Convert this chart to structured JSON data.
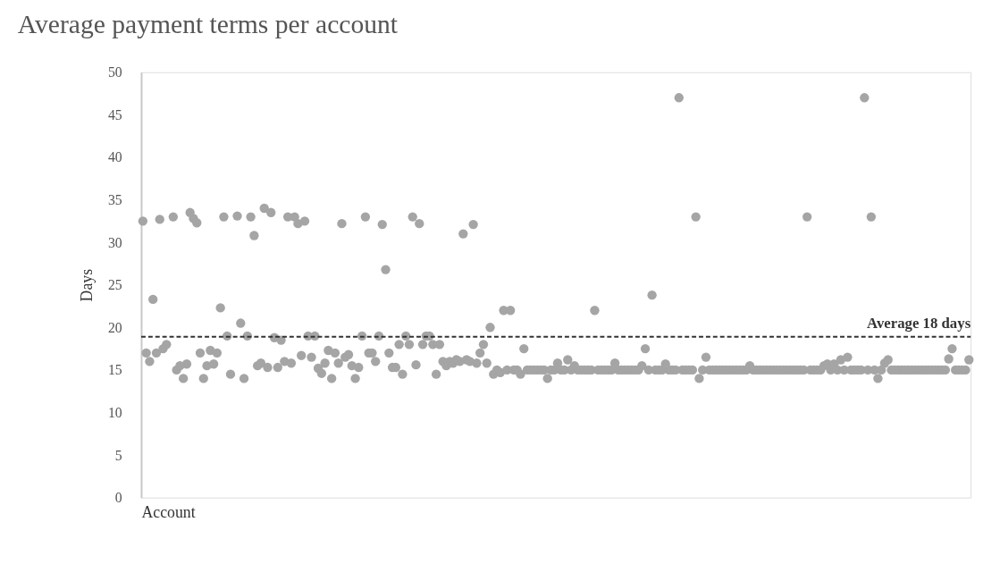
{
  "chart_data": {
    "type": "scatter",
    "title": "Average payment terms per account",
    "xlabel": "Account",
    "ylabel": "Days",
    "categories": [
      null,
      null,
      null,
      null,
      null,
      null,
      null,
      null,
      null,
      null,
      null,
      null,
      null,
      null,
      null,
      null,
      null,
      null,
      null,
      null,
      null,
      null,
      null,
      null,
      null,
      null,
      null,
      null,
      null,
      null,
      null,
      null,
      null,
      null,
      null,
      null,
      null,
      null,
      null,
      null,
      null,
      null,
      null,
      null,
      null,
      null,
      null,
      null,
      null,
      null,
      null,
      null,
      null,
      null,
      null,
      null,
      null,
      null,
      null,
      null,
      null,
      null,
      null,
      null,
      null,
      null,
      null,
      null,
      null,
      null,
      null,
      null,
      null,
      null,
      null,
      null,
      null,
      null,
      null,
      null,
      null,
      null,
      null,
      null,
      null,
      null,
      null,
      null,
      null,
      null,
      null,
      null,
      null,
      null,
      null,
      null,
      null,
      null,
      null,
      null,
      null,
      null,
      null,
      null,
      null,
      null,
      null,
      null,
      null,
      null,
      null,
      null,
      null,
      null,
      null,
      null,
      null,
      null,
      null,
      null,
      null,
      null,
      null,
      null,
      null,
      null,
      null,
      null,
      null,
      null,
      null,
      null,
      null,
      null,
      null,
      null,
      null,
      null,
      null,
      null,
      null,
      null,
      null,
      null,
      null,
      null,
      null,
      null,
      null,
      null,
      null,
      null,
      null,
      null,
      null,
      null,
      null,
      null,
      null,
      null,
      null,
      null,
      null,
      null,
      null,
      null,
      null,
      null,
      null,
      null,
      null,
      null,
      null,
      null,
      null,
      null,
      null,
      null,
      null,
      null,
      null,
      null,
      null,
      null,
      null,
      null,
      null,
      null,
      null,
      null,
      null,
      null,
      null,
      null,
      null,
      null,
      null,
      null,
      null,
      null,
      null,
      null,
      null,
      null,
      null,
      null,
      null,
      null,
      null,
      null,
      null,
      null,
      null,
      null,
      null,
      null,
      null,
      null,
      null,
      null,
      null,
      null,
      null,
      null,
      null,
      null,
      null,
      null,
      null,
      null,
      null,
      null,
      null,
      null,
      null,
      null,
      null,
      null,
      null,
      null,
      null,
      null,
      null,
      null,
      null,
      null
    ],
    "series": [
      {
        "color": "#a5a5a5",
        "values": [
          32.5,
          17,
          16,
          23.3,
          17,
          32.7,
          17.5,
          18,
          null,
          33,
          15,
          15.5,
          14,
          15.7,
          33.5,
          32.8,
          32.3,
          17,
          14,
          15.5,
          17.3,
          15.7,
          17,
          22.3,
          33,
          19,
          14.5,
          null,
          33.1,
          20.5,
          14,
          19,
          33,
          30.8,
          15.5,
          15.8,
          34,
          15.3,
          33.5,
          18.8,
          15.3,
          18.5,
          16,
          33,
          15.8,
          33,
          32.2,
          16.7,
          32.5,
          19,
          16.5,
          19,
          15.2,
          14.6,
          15.8,
          17.3,
          14,
          17,
          15.8,
          32.2,
          16.5,
          16.8,
          15.5,
          14,
          15.3,
          19,
          33,
          17,
          17,
          16,
          19,
          32.1,
          26.8,
          17,
          15.3,
          15.3,
          18,
          14.5,
          19,
          18,
          33,
          15.6,
          32.2,
          18,
          19,
          19,
          18,
          14.5,
          18,
          16,
          15.5,
          16,
          15.8,
          16.2,
          16,
          31,
          16.2,
          16,
          32.1,
          15.8,
          17,
          18,
          15.8,
          20,
          14.5,
          15,
          14.7,
          22,
          15,
          22,
          15,
          15,
          14.5,
          17.5,
          15,
          15,
          15,
          15,
          15,
          15,
          14,
          15,
          15,
          15.8,
          15,
          15,
          16.2,
          15,
          15.5,
          15,
          15,
          15,
          15,
          15,
          22,
          15,
          15,
          15,
          15,
          15,
          15.8,
          15,
          15,
          15,
          15,
          15,
          15,
          15,
          15.5,
          17.5,
          15,
          23.8,
          15,
          15,
          15,
          15.7,
          15,
          15,
          15,
          47,
          15,
          15,
          15,
          15,
          33,
          14,
          15,
          16.5,
          15,
          15,
          15,
          15,
          15,
          15,
          15,
          15,
          15,
          15,
          15,
          15,
          15.5,
          15,
          15,
          15,
          15,
          15,
          15,
          15,
          15,
          15,
          15,
          15,
          15,
          15,
          15,
          15,
          15,
          33,
          15,
          15,
          15,
          15,
          15.5,
          15.7,
          15,
          15.7,
          15,
          16.2,
          15,
          16.5,
          15,
          15,
          15,
          15,
          47,
          15,
          33,
          15,
          14,
          15,
          15.8,
          16.2,
          15,
          15,
          15,
          15,
          15,
          15,
          15,
          15,
          15,
          15,
          15,
          15,
          15,
          15,
          15,
          15,
          15,
          16.3,
          17.5,
          15,
          15,
          15,
          15,
          16.2
        ]
      }
    ],
    "ylim": [
      0,
      50
    ],
    "yticks": [
      0,
      5,
      10,
      15,
      20,
      25,
      30,
      35,
      40,
      45,
      50
    ],
    "grid": false,
    "marker": "circle",
    "tick_labels": "y",
    "ref_lines": [
      {
        "axis": "y",
        "value": 18.9,
        "label": "Average 18 days",
        "color": "#333333",
        "line_style": "dashed"
      }
    ]
  }
}
